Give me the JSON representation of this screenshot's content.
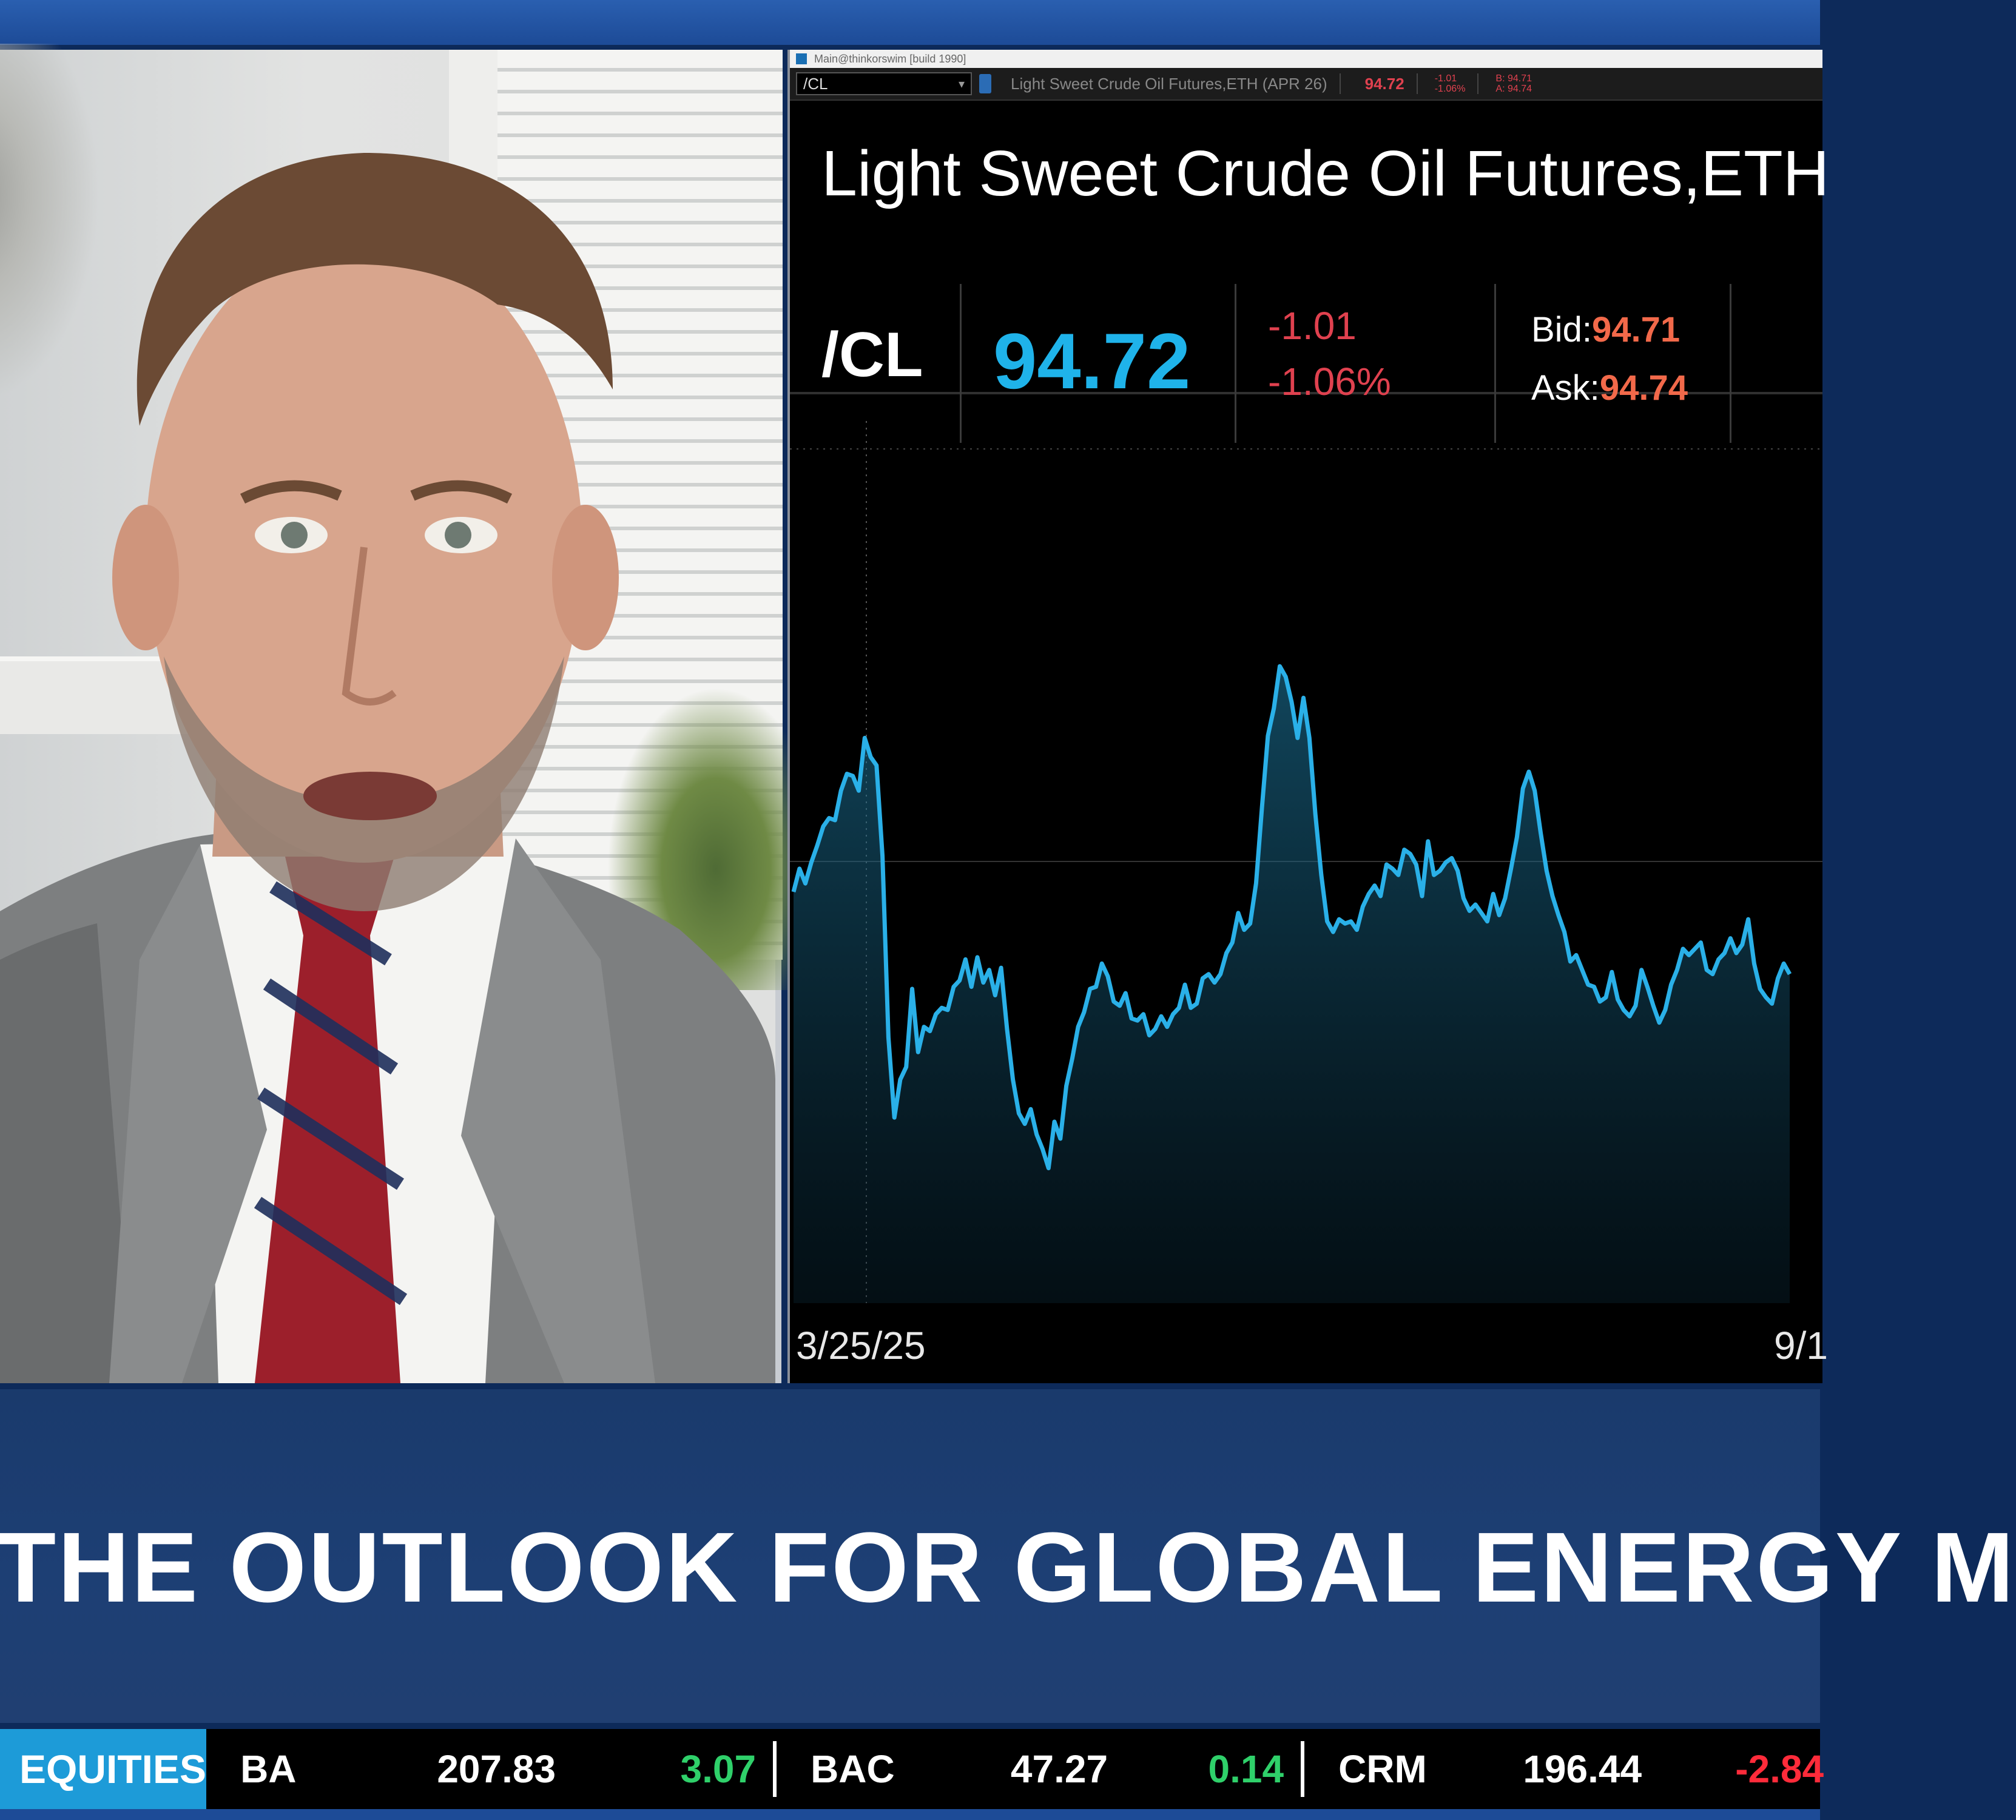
{
  "window": {
    "titlebar": "Main@thinkorswim [build 1990]",
    "symbol_input": "/CL",
    "toolbar_description": "Light Sweet Crude Oil Futures,ETH (APR 26)",
    "toolbar_last": "94.72",
    "toolbar_change_1": "-1.01",
    "toolbar_change_2": "-1.06%",
    "toolbar_bid": "B: 94.71",
    "toolbar_ask": "A: 94.74"
  },
  "quote": {
    "instrument_title": "Light Sweet Crude Oil Futures,ETH",
    "symbol": "/CL",
    "last": "94.72",
    "net_change": "-1.01",
    "percent_change": "-1.06%",
    "bid_label": "Bid:",
    "bid": "94.71",
    "ask_label": "Ask:",
    "ask": "94.74"
  },
  "chart_data": {
    "type": "area",
    "title": "",
    "xlabel": "",
    "ylabel": "",
    "x_tick_labels": [
      "3/25/25",
      "9/1"
    ],
    "series": [
      {
        "values": [
          67.5,
          68.6,
          67.9,
          68.9,
          69.7,
          70.6,
          71.0,
          70.9,
          72.3,
          73.1,
          73.0,
          72.3,
          74.8,
          73.9,
          73.5,
          69.2,
          60.6,
          56.8,
          58.6,
          59.2,
          62.9,
          59.9,
          61.1,
          60.9,
          61.7,
          62.0,
          61.9,
          63.0,
          63.3,
          64.3,
          63.0,
          64.4,
          63.2,
          63.8,
          62.6,
          63.9,
          61.0,
          58.6,
          57.0,
          56.5,
          57.2,
          56.0,
          55.3,
          54.4,
          56.6,
          55.8,
          58.3,
          59.6,
          61.1,
          61.8,
          62.9,
          63.0,
          64.1,
          63.5,
          62.3,
          62.1,
          62.7,
          61.5,
          61.4,
          61.7,
          60.7,
          61.0,
          61.6,
          61.1,
          61.7,
          62.0,
          63.1,
          62.0,
          62.2,
          63.4,
          63.6,
          63.2,
          63.6,
          64.6,
          65.1,
          66.5,
          65.7,
          66.0,
          67.9,
          71.5,
          74.9,
          76.2,
          78.2,
          77.7,
          76.5,
          74.8,
          76.7,
          74.8,
          71.2,
          68.3,
          66.1,
          65.6,
          66.2,
          66.0,
          66.1,
          65.7,
          66.8,
          67.4,
          67.8,
          67.3,
          68.8,
          68.6,
          68.3,
          69.5,
          69.3,
          68.8,
          67.3,
          69.9,
          68.3,
          68.5,
          68.9,
          69.1,
          68.5,
          67.2,
          66.6,
          66.9,
          66.5,
          66.1,
          67.4,
          66.4,
          67.2,
          68.6,
          70.1,
          72.4,
          73.2,
          72.3,
          70.3,
          68.5,
          67.3,
          66.4,
          65.6,
          64.2,
          64.5,
          63.8,
          63.1,
          63.0,
          62.3,
          62.5,
          63.7,
          62.4,
          61.9,
          61.6,
          62.1,
          63.8,
          63.0,
          62.1,
          61.3,
          61.9,
          63.1,
          63.8,
          64.8,
          64.5,
          64.8,
          65.1,
          63.8,
          63.6,
          64.3,
          64.6,
          65.3,
          64.6,
          65.0,
          66.2,
          64.1,
          62.9,
          62.5,
          62.2,
          63.4,
          64.1,
          63.6
        ]
      }
    ],
    "ylim": [
      48,
      90
    ],
    "grid": true,
    "legend": "none"
  },
  "headline": {
    "text": "THE OUTLOOK FOR GLOBAL ENERGY M"
  },
  "ticker": {
    "section_label": "EQUITIES",
    "items": [
      {
        "symbol": "BA",
        "price": "207.83",
        "change": "3.07",
        "direction": "up"
      },
      {
        "symbol": "BAC",
        "price": "47.27",
        "change": "0.14",
        "direction": "up"
      },
      {
        "symbol": "CRM",
        "price": "196.44",
        "change": "-2.84",
        "direction": "down"
      }
    ]
  },
  "colors": {
    "accent_blue": "#1fb3ea",
    "negative_red": "#e0414f",
    "positive_green": "#2fd06a",
    "ticker_label_bg": "#1d9bd8",
    "headline_bg": "#1d3f74"
  }
}
